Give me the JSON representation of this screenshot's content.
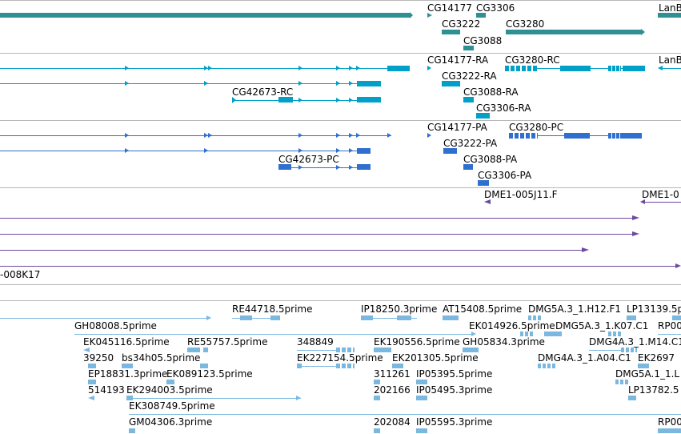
{
  "tracks": [
    {
      "name": "genes"
    },
    {
      "name": "transcripts-rna"
    },
    {
      "name": "transcripts-protein"
    },
    {
      "name": "clones"
    },
    {
      "name": "ests"
    }
  ],
  "colors": {
    "gene": "#2e9093",
    "rna": "#00a0c8",
    "protein": "#2f6fd0",
    "clone": "#6b4aa0",
    "est": "#7ab8df",
    "track_border": "#b8b8b8"
  },
  "labels": {
    "genes": {
      "cg14177": "CG14177",
      "cg3306": "CG3306",
      "lanb": "LanB",
      "cg3222": "CG3222",
      "cg3280": "CG3280",
      "cg3088": "CG3088"
    },
    "rna": {
      "cg14177_ra": "CG14177-RA",
      "cg3280_rc": "CG3280-RC",
      "lanb": "LanB",
      "cg3222_ra": "CG3222-RA",
      "cg42673_rc": "CG42673-RC",
      "cg3088_ra": "CG3088-RA",
      "cg3306_ra": "CG3306-RA"
    },
    "protein": {
      "cg14177_pa": "CG14177-PA",
      "cg3280_pc": "CG3280-PC",
      "cg3222_pa": "CG3222-PA",
      "cg42673_pc": "CG42673-PC",
      "cg3088_pa": "CG3088-PA",
      "cg3306_pa": "CG3306-PA"
    },
    "clones": {
      "dme1_005j11": "DME1-005J11.F",
      "dme1_0": "DME1-0",
      "k008k17": "-008K17"
    },
    "ests": {
      "re44718": "RE44718.5prime",
      "ip18250": "IP18250.3prime",
      "at15408": "AT15408.5prime",
      "dmg5a3_h12": "DMG5A.3_1.H12.F1",
      "lp13139": "LP13139.5p",
      "gh08008": "GH08008.5prime",
      "ek014926": "EK014926.5prime",
      "dmg5a3_k07": "DMG5A.3_1.K07.C1",
      "rp00": "RP00",
      "ek045116": "EK045116.5prime",
      "re55757": "RE55757.5prime",
      "n348849": "348849",
      "ek190556": "EK190556.5prime",
      "gh05834": "GH05834.3prime",
      "dmg4a3_m14": "DMG4A.3_1.M14.C1",
      "n39250": "39250",
      "bs34h05": "bs34h05.5prime",
      "ek227154": "EK227154.5prime",
      "ek201305": "EK201305.5prime",
      "dmg4a3_a04": "DMG4A.3_1.A04.C1",
      "ek2697": "EK2697",
      "ep18831": "EP18831.3prime",
      "ek089123": "EK089123.5prime",
      "n311261": "311261",
      "ip05395": "IP05395.5prime",
      "dmg5a1_l": "DMG5A.1_1.L",
      "n514193": "514193",
      "ek294003": "EK294003.5prime",
      "n202166": "202166",
      "ip05495": "IP05495.3prime",
      "lp13782": "LP13782.5",
      "ek308749": "EK308749.5prime",
      "gm04306": "GM04306.3prime",
      "n202084": "202084",
      "ip05595": "IP05595.3prime",
      "rp00b": "RP00"
    }
  }
}
